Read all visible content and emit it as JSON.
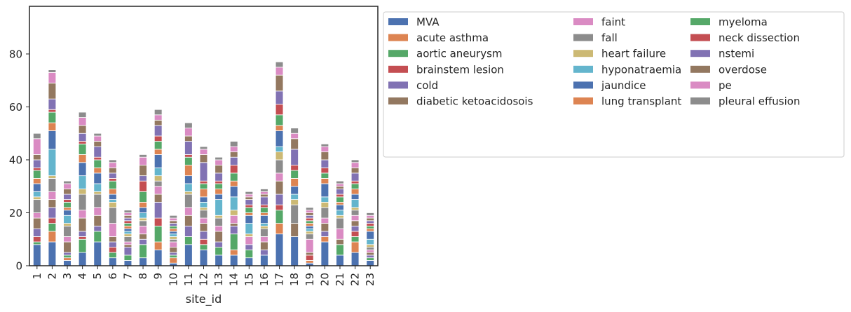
{
  "chart_data": {
    "type": "bar",
    "stacked": true,
    "xlabel": "site_id",
    "ylabel": "",
    "ylim": [
      0,
      98
    ],
    "yticks": [
      0,
      20,
      40,
      60,
      80
    ],
    "x_tick_rotation": 90,
    "grid": false,
    "legend": {
      "placement": "outside-right",
      "columns": 3
    },
    "categories": [
      "1",
      "2",
      "3",
      "4",
      "5",
      "6",
      "7",
      "8",
      "9",
      "10",
      "11",
      "12",
      "13",
      "14",
      "15",
      "16",
      "17",
      "18",
      "19",
      "20",
      "21",
      "22",
      "23"
    ],
    "series": [
      {
        "name": "MVA",
        "color": "#4c72b0",
        "values": [
          8,
          9,
          2,
          5,
          9,
          3,
          2,
          3,
          6,
          1,
          8,
          6,
          4,
          4,
          3,
          4,
          12,
          11,
          1,
          9,
          4,
          5,
          2
        ]
      },
      {
        "name": "acute asthma",
        "color": "#dd8452",
        "values": [
          0,
          4,
          1,
          0,
          0,
          0,
          0,
          0,
          3,
          2,
          0,
          0,
          0,
          2,
          0,
          0,
          4,
          0,
          1,
          2,
          0,
          4,
          0
        ]
      },
      {
        "name": "aortic aneurysm",
        "color": "#55a868",
        "values": [
          1,
          3,
          1,
          5,
          4,
          2,
          2,
          5,
          6,
          1,
          3,
          2,
          3,
          6,
          3,
          0,
          5,
          0,
          0,
          0,
          4,
          2,
          1
        ]
      },
      {
        "name": "brainstem lesion",
        "color": "#c44e52",
        "values": [
          2,
          2,
          0,
          1,
          0,
          2,
          0,
          0,
          3,
          0,
          0,
          2,
          0,
          0,
          0,
          0,
          2,
          0,
          2,
          0,
          0,
          2,
          0
        ]
      },
      {
        "name": "cold",
        "color": "#8172b3",
        "values": [
          3,
          4,
          1,
          2,
          2,
          2,
          3,
          2,
          6,
          1,
          4,
          3,
          2,
          3,
          2,
          2,
          4,
          0,
          0,
          2,
          0,
          2,
          1
        ]
      },
      {
        "name": "diabetic ketoacidosois",
        "color": "#937860",
        "values": [
          4,
          3,
          4,
          5,
          4,
          2,
          1,
          2,
          3,
          2,
          4,
          3,
          4,
          1,
          0,
          3,
          5,
          5,
          1,
          3,
          2,
          2,
          1
        ]
      },
      {
        "name": "faint",
        "color": "#da8bc3",
        "values": [
          2,
          3,
          2,
          3,
          3,
          5,
          1,
          3,
          3,
          2,
          3,
          2,
          2,
          3,
          3,
          2,
          3,
          0,
          5,
          2,
          4,
          2,
          1
        ]
      },
      {
        "name": "fall",
        "color": "#8c8c8c",
        "values": [
          5,
          5,
          4,
          6,
          5,
          6,
          2,
          2,
          2,
          1,
          5,
          3,
          3,
          0,
          0,
          3,
          5,
          7,
          2,
          4,
          4,
          2,
          1
        ]
      },
      {
        "name": "heart failure",
        "color": "#ccb974",
        "values": [
          1,
          1,
          1,
          2,
          1,
          2,
          1,
          1,
          2,
          1,
          1,
          1,
          1,
          2,
          1,
          1,
          3,
          2,
          1,
          2,
          1,
          1,
          1
        ]
      },
      {
        "name": "hyponatraemia",
        "color": "#64b5cd",
        "values": [
          2,
          10,
          3,
          5,
          3,
          1,
          1,
          2,
          3,
          1,
          3,
          2,
          6,
          5,
          4,
          1,
          2,
          2,
          1,
          2,
          2,
          3,
          2
        ]
      },
      {
        "name": "jaundice",
        "color": "#4c72b0",
        "values": [
          3,
          7,
          2,
          5,
          4,
          2,
          1,
          2,
          5,
          1,
          3,
          2,
          2,
          4,
          3,
          3,
          6,
          3,
          1,
          5,
          2,
          2,
          3
        ]
      },
      {
        "name": "lung transplant",
        "color": "#dd8452",
        "values": [
          2,
          3,
          1,
          3,
          2,
          2,
          1,
          2,
          2,
          1,
          4,
          3,
          2,
          2,
          1,
          1,
          2,
          3,
          1,
          2,
          1,
          2,
          1
        ]
      },
      {
        "name": "myeloma",
        "color": "#55a868",
        "values": [
          3,
          4,
          2,
          4,
          3,
          3,
          1,
          4,
          3,
          1,
          3,
          2,
          2,
          3,
          2,
          2,
          4,
          3,
          1,
          2,
          2,
          2,
          1
        ]
      },
      {
        "name": "neck dissection",
        "color": "#c44e52",
        "values": [
          1,
          1,
          1,
          1,
          1,
          1,
          1,
          4,
          2,
          0,
          1,
          1,
          1,
          3,
          1,
          1,
          4,
          2,
          1,
          2,
          1,
          1,
          1
        ]
      },
      {
        "name": "nstemi",
        "color": "#8172b3",
        "values": [
          3,
          4,
          2,
          3,
          4,
          2,
          1,
          2,
          4,
          1,
          5,
          7,
          3,
          3,
          2,
          3,
          5,
          6,
          1,
          3,
          2,
          3,
          1
        ]
      },
      {
        "name": "overdose",
        "color": "#937860",
        "values": [
          2,
          6,
          2,
          3,
          2,
          2,
          1,
          4,
          2,
          1,
          2,
          3,
          3,
          2,
          1,
          1,
          6,
          4,
          1,
          3,
          1,
          2,
          1
        ]
      },
      {
        "name": "pe",
        "color": "#da8bc3",
        "values": [
          6,
          4,
          2,
          3,
          2,
          2,
          1,
          3,
          2,
          1,
          3,
          2,
          2,
          2,
          1,
          1,
          3,
          2,
          1,
          2,
          1,
          2,
          1
        ]
      },
      {
        "name": "pleural effusion",
        "color": "#8c8c8c",
        "values": [
          2,
          1,
          1,
          2,
          1,
          1,
          1,
          1,
          2,
          1,
          2,
          1,
          1,
          2,
          1,
          1,
          2,
          2,
          1,
          1,
          1,
          1,
          1
        ]
      }
    ]
  }
}
